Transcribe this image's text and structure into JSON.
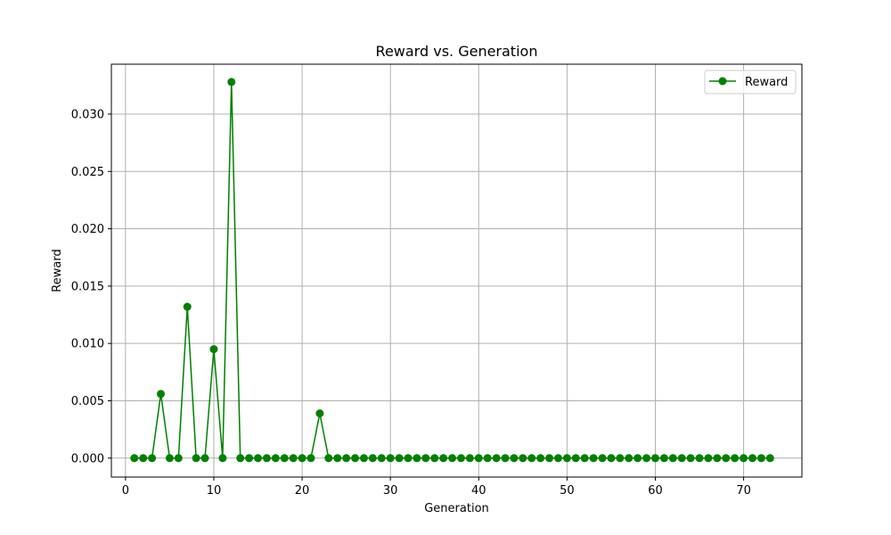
{
  "chart_data": {
    "type": "line",
    "title": "Reward vs. Generation",
    "xlabel": "Generation",
    "ylabel": "Reward",
    "xlim": [
      -1.6,
      76.6
    ],
    "ylim": [
      -0.00165,
      0.03435
    ],
    "xticks": [
      0,
      10,
      20,
      30,
      40,
      50,
      60,
      70
    ],
    "yticks": [
      0.0,
      0.005,
      0.01,
      0.015,
      0.02,
      0.025,
      0.03
    ],
    "ytick_labels": [
      "0.000",
      "0.005",
      "0.010",
      "0.015",
      "0.020",
      "0.025",
      "0.030"
    ],
    "grid": true,
    "legend_position": "top-right",
    "colors": {
      "series": "#008000",
      "grid": "#b0b0b0",
      "axes": "#000000"
    },
    "x": [
      1,
      2,
      3,
      4,
      5,
      6,
      7,
      8,
      9,
      10,
      11,
      12,
      13,
      14,
      15,
      16,
      17,
      18,
      19,
      20,
      21,
      22,
      23,
      24,
      25,
      26,
      27,
      28,
      29,
      30,
      31,
      32,
      33,
      34,
      35,
      36,
      37,
      38,
      39,
      40,
      41,
      42,
      43,
      44,
      45,
      46,
      47,
      48,
      49,
      50,
      51,
      52,
      53,
      54,
      55,
      56,
      57,
      58,
      59,
      60,
      61,
      62,
      63,
      64,
      65,
      66,
      67,
      68,
      69,
      70,
      71,
      72,
      73
    ],
    "series": [
      {
        "name": "Reward",
        "marker": "circle",
        "values": [
          0,
          0,
          0,
          0.0056,
          0,
          0,
          0.0132,
          0,
          0,
          0.0095,
          0,
          0.0328,
          0,
          0,
          0,
          0,
          0,
          0,
          0,
          0,
          0,
          0.0039,
          0,
          0,
          0,
          0,
          0,
          0,
          0,
          0,
          0,
          0,
          0,
          0,
          0,
          0,
          0,
          0,
          0,
          0,
          0,
          0,
          0,
          0,
          0,
          0,
          0,
          0,
          0,
          0,
          0,
          0,
          0,
          0,
          0,
          0,
          0,
          0,
          0,
          0,
          0,
          0,
          0,
          0,
          0,
          0,
          0,
          0,
          0,
          0,
          0,
          0,
          0
        ]
      }
    ]
  }
}
